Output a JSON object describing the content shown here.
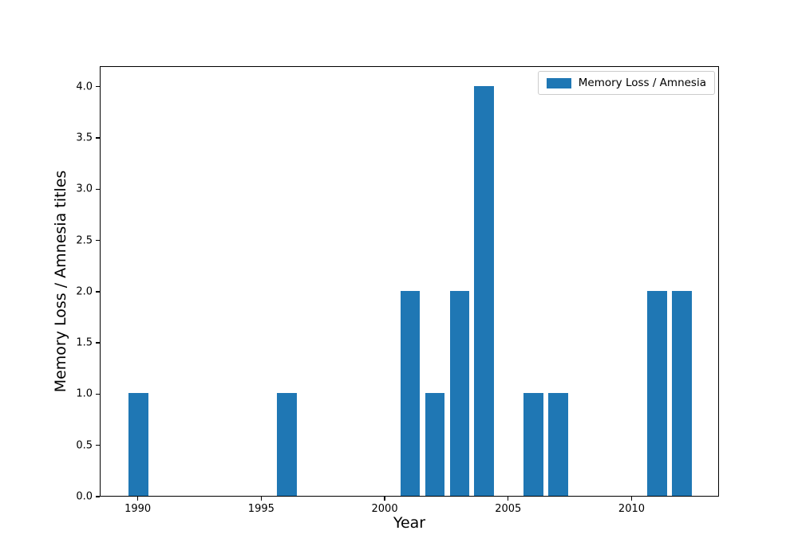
{
  "chart_data": {
    "type": "bar",
    "x": [
      1990,
      1996,
      2001,
      2002,
      2003,
      2004,
      2006,
      2007,
      2011,
      2012
    ],
    "values": [
      1,
      1,
      2,
      1,
      2,
      4,
      1,
      1,
      2,
      2
    ],
    "title": "",
    "xlabel": "Year",
    "ylabel": "Memory Loss / Amnesia titles",
    "xlim": [
      1988.46,
      2013.54
    ],
    "ylim": [
      0,
      4.2
    ],
    "xticks": [
      1990,
      1995,
      2000,
      2005,
      2010
    ],
    "xtick_labels": [
      "1990",
      "1995",
      "2000",
      "2005",
      "2010"
    ],
    "yticks": [
      0,
      0.5,
      1,
      1.5,
      2,
      2.5,
      3,
      3.5,
      4
    ],
    "ytick_labels": [
      "0.0",
      "0.5",
      "1.0",
      "1.5",
      "2.0",
      "2.5",
      "3.0",
      "3.5",
      "4.0"
    ],
    "bar_width": 0.8,
    "bar_color": "#1f77b4",
    "grid": false,
    "legend": {
      "position": "upper-right",
      "label": "Memory Loss / Amnesia"
    }
  }
}
